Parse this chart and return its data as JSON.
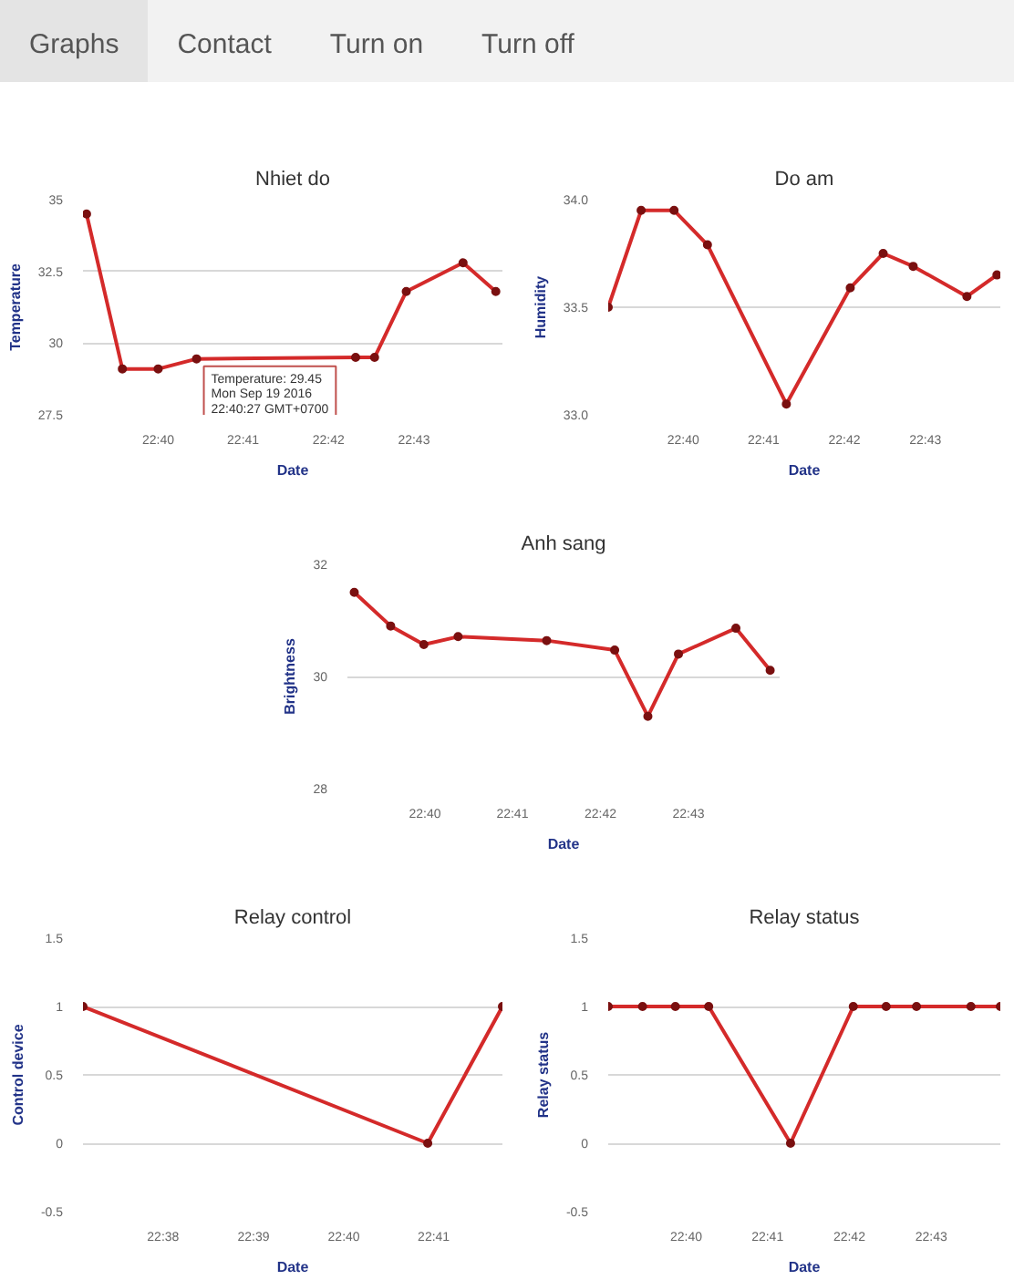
{
  "chart_data": [
    {
      "type": "other",
      "annotations": [
        "Graphs",
        "Contact",
        "Turn on",
        "Turn off"
      ]
    },
    {
      "type": "line",
      "title": "Nhiet do",
      "xlabel": "Date",
      "ylabel": "Temperature",
      "marker": "circle",
      "grid": "y",
      "color": "#d42a2a",
      "x": [
        22.6527,
        22.6597,
        22.6667,
        22.6742,
        22.7053,
        22.709,
        22.7152,
        22.7263,
        22.7327
      ],
      "values": [
        34.5,
        29.1,
        29.1,
        29.45,
        29.5,
        29.5,
        31.8,
        32.8,
        31.8
      ],
      "xlim": [
        22.652,
        22.734
      ],
      "ylim": [
        27.5,
        35
      ],
      "yticks": [
        27.5,
        30,
        32.5,
        35
      ],
      "xticks": [
        {
          "value": 22.6667,
          "label": "22:40"
        },
        {
          "value": 22.6833,
          "label": "22:41"
        },
        {
          "value": 22.7,
          "label": "22:42"
        },
        {
          "value": 22.7167,
          "label": "22:43"
        }
      ],
      "annotations": [
        {
          "text": "Temperature: 29.45\nMon Sep 19 2016\n22:40:27 GMT+0700",
          "x": 22.6742,
          "y": 29.45
        }
      ]
    },
    {
      "type": "line",
      "title": "Do am",
      "xlabel": "Date",
      "ylabel": "Humidity",
      "marker": "circle",
      "grid": "y",
      "color": "#d42a2a",
      "x": [
        22.6512,
        22.658,
        22.6648,
        22.6717,
        22.688,
        22.7012,
        22.708,
        22.7142,
        22.7253,
        22.7315
      ],
      "values": [
        33.5,
        33.95,
        33.95,
        33.79,
        33.05,
        33.59,
        33.75,
        33.69,
        33.55,
        33.65
      ],
      "xlim": [
        22.6512,
        22.7322
      ],
      "ylim": [
        33,
        34
      ],
      "yticks": [
        {
          "value": 33,
          "label": "33.0"
        },
        {
          "value": 33.5,
          "label": "33.5"
        },
        {
          "value": 34,
          "label": "34.0"
        }
      ],
      "xticks": [
        {
          "value": 22.6667,
          "label": "22:40"
        },
        {
          "value": 22.6833,
          "label": "22:41"
        },
        {
          "value": 22.7,
          "label": "22:42"
        },
        {
          "value": 22.7167,
          "label": "22:43"
        }
      ]
    },
    {
      "type": "line",
      "title": "Anh sang",
      "xlabel": "Date",
      "ylabel": "Brightness",
      "marker": "circle",
      "grid": "y",
      "color": "#d42a2a",
      "x": [
        22.6533,
        22.6602,
        22.6665,
        22.673,
        22.6898,
        22.7027,
        22.709,
        22.7148,
        22.7257,
        22.7322
      ],
      "values": [
        31.5,
        30.9,
        30.57,
        30.71,
        30.64,
        30.47,
        29.29,
        30.4,
        30.86,
        30.11
      ],
      "xlim": [
        22.652,
        22.734
      ],
      "ylim": [
        28,
        32
      ],
      "yticks": [
        28,
        30,
        32
      ],
      "xticks": [
        {
          "value": 22.6667,
          "label": "22:40"
        },
        {
          "value": 22.6833,
          "label": "22:41"
        },
        {
          "value": 22.7,
          "label": "22:42"
        },
        {
          "value": 22.7167,
          "label": "22:43"
        }
      ]
    },
    {
      "type": "line",
      "title": "Relay control",
      "xlabel": "Date",
      "ylabel": "Control device",
      "marker": "circle",
      "grid": "y",
      "color": "#d42a2a",
      "x": [
        22.6185,
        22.6822,
        22.696
      ],
      "values": [
        1,
        0,
        1
      ],
      "xlim": [
        22.6185,
        22.696
      ],
      "ylim": [
        -0.5,
        1.5
      ],
      "yticks": [
        -0.5,
        0,
        0.5,
        1,
        1.5
      ],
      "xticks": [
        {
          "value": 22.6333,
          "label": "22:38"
        },
        {
          "value": 22.65,
          "label": "22:39"
        },
        {
          "value": 22.6667,
          "label": "22:40"
        },
        {
          "value": 22.6833,
          "label": "22:41"
        }
      ]
    },
    {
      "type": "line",
      "title": "Relay status",
      "xlabel": "Date",
      "ylabel": "Relay status",
      "marker": "circle",
      "grid": "y",
      "color": "#d42a2a",
      "x": [
        22.6508,
        22.6578,
        22.6645,
        22.6713,
        22.688,
        22.7008,
        22.7075,
        22.7137,
        22.7248,
        22.7308
      ],
      "values": [
        1,
        1,
        1,
        1,
        0,
        1,
        1,
        1,
        1,
        1
      ],
      "xlim": [
        22.6508,
        22.7308
      ],
      "ylim": [
        -0.5,
        1.5
      ],
      "yticks": [
        -0.5,
        0,
        0.5,
        1,
        1.5
      ],
      "xticks": [
        {
          "value": 22.6667,
          "label": "22:40"
        },
        {
          "value": 22.6833,
          "label": "22:41"
        },
        {
          "value": 22.7,
          "label": "22:42"
        },
        {
          "value": 22.7167,
          "label": "22:43"
        }
      ]
    }
  ]
}
